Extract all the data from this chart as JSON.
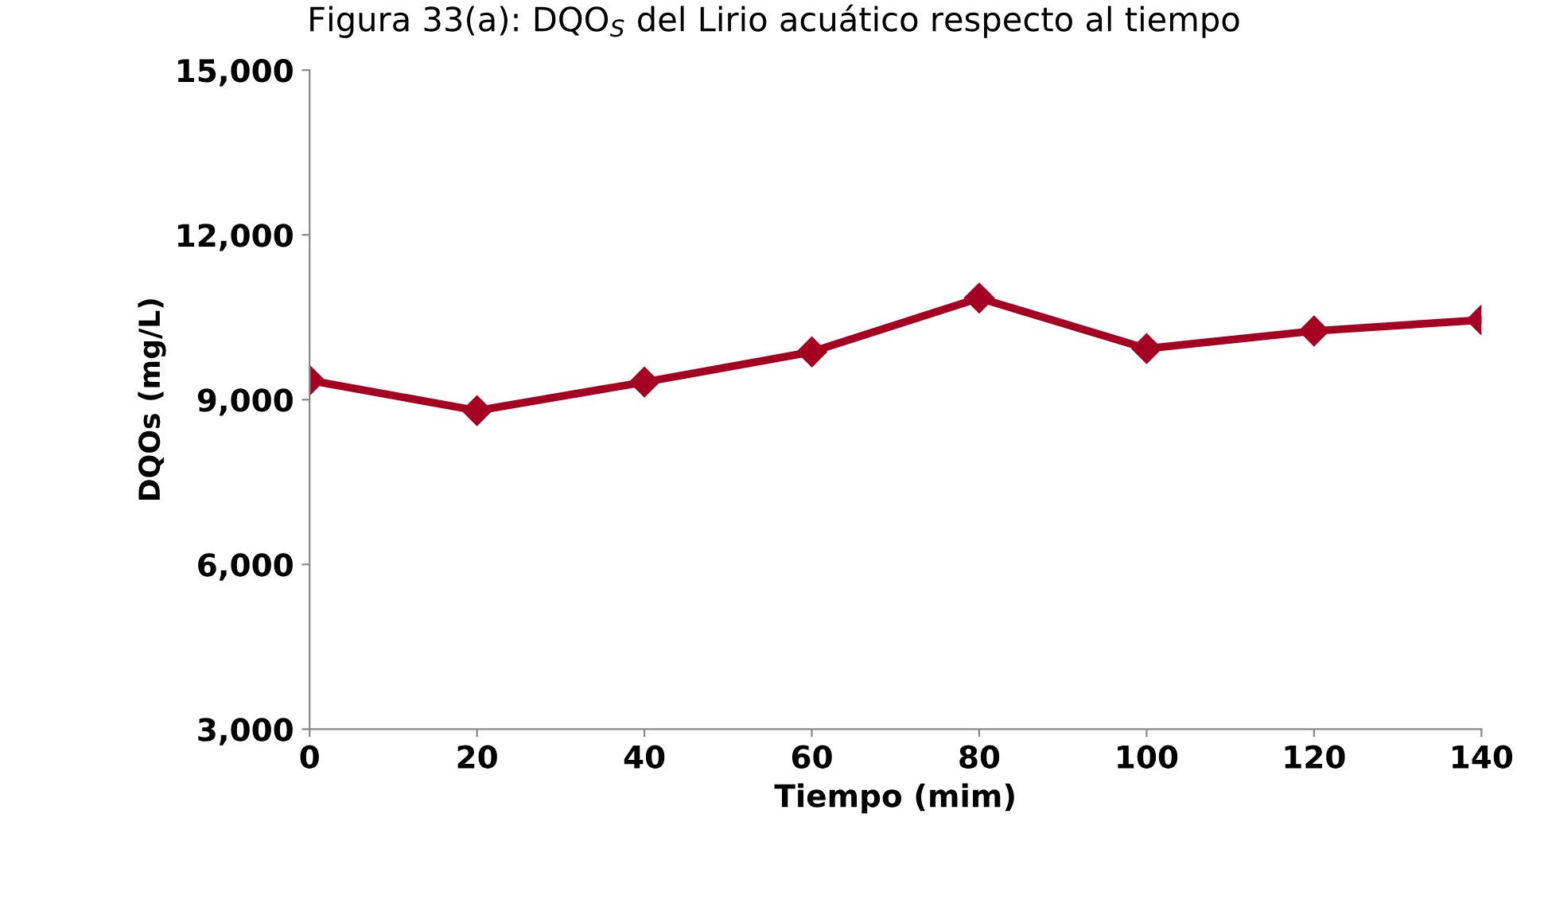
{
  "chart_data": {
    "type": "line",
    "title": "Figura 33(a): DQO$_{S}$ del Lirio acuático respecto al tiempo",
    "xlabel": "Tiempo (mim)",
    "ylabel": "DQOs (mg/L)",
    "x": [
      0,
      20,
      40,
      60,
      80,
      100,
      120,
      140
    ],
    "series": [
      {
        "color": "#a50021",
        "values": [
          9350,
          8800,
          9320,
          9870,
          10850,
          9930,
          10250,
          10450
        ]
      }
    ],
    "xlim": [
      0,
      140
    ],
    "xticks": [
      0,
      20,
      40,
      60,
      80,
      100,
      120,
      140
    ],
    "ylim": [
      3000,
      15000
    ],
    "yticks": [
      {
        "value": 3000,
        "label": "3,000"
      },
      {
        "value": 6000,
        "label": "6,000"
      },
      {
        "value": 9000,
        "label": "9,000"
      },
      {
        "value": 12000,
        "label": "12,000"
      },
      {
        "value": 15000,
        "label": "15,000"
      }
    ],
    "grid": false,
    "legend": false,
    "marker": "diamond",
    "line_style": "solid"
  }
}
